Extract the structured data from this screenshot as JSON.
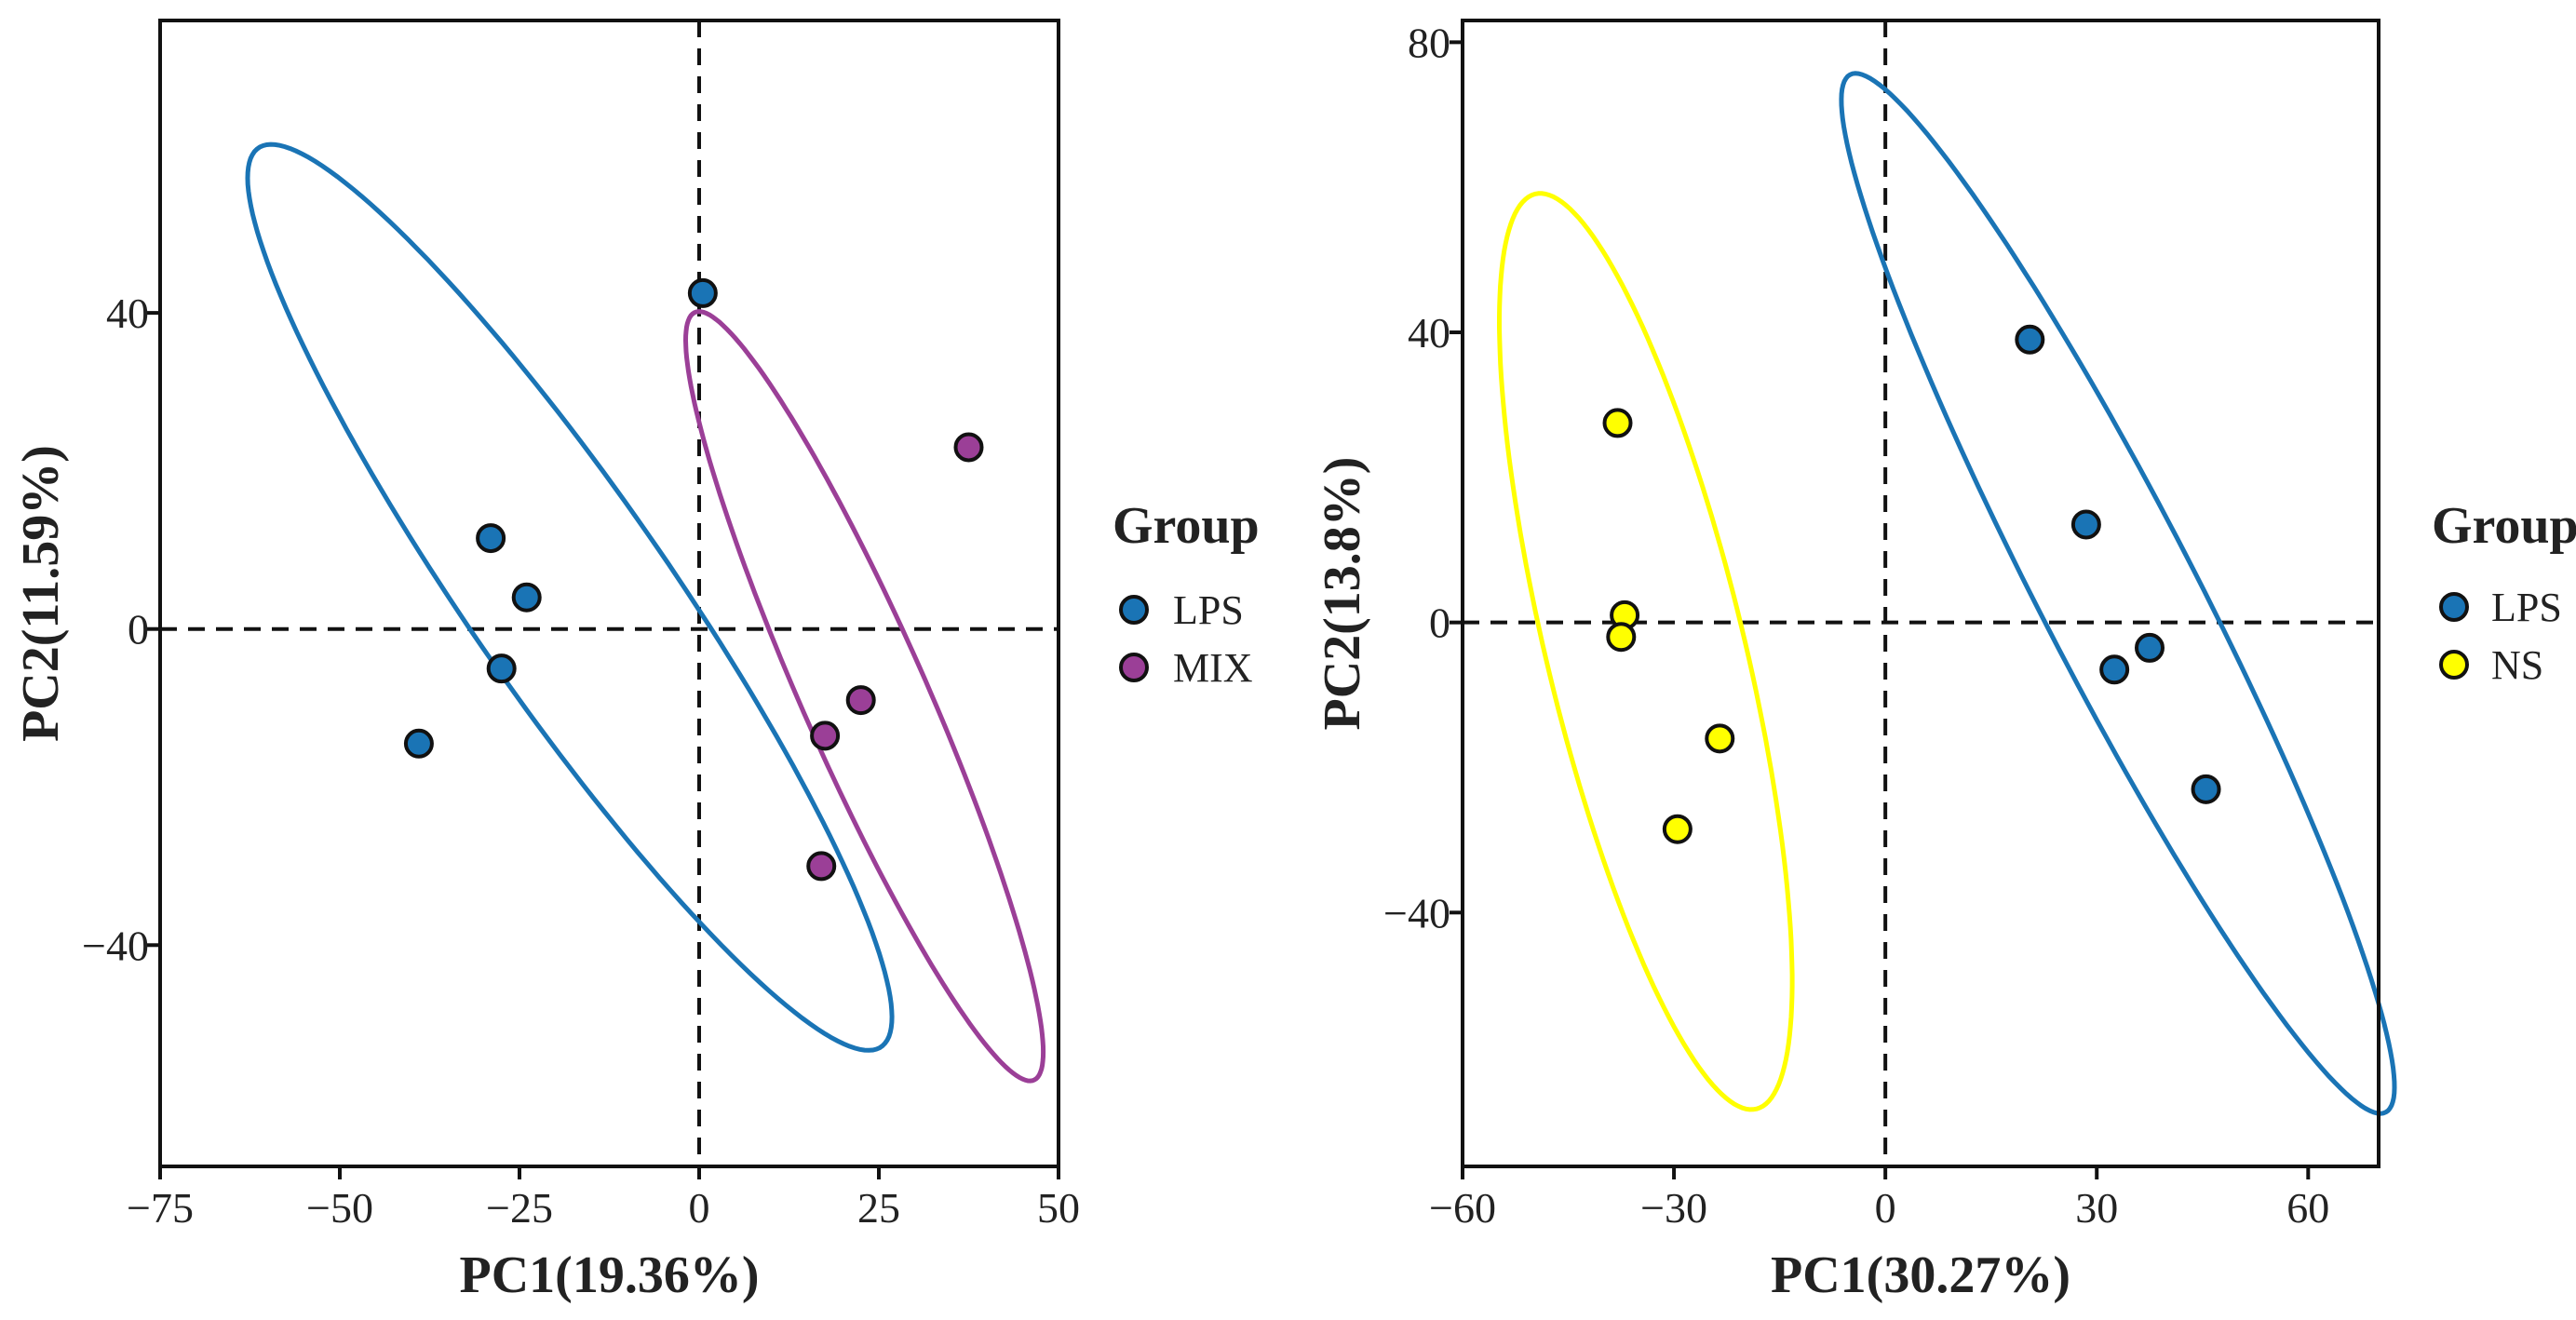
{
  "chart_data": [
    {
      "type": "scatter",
      "xlabel": "PC1(19.36%)",
      "ylabel": "PC2(11.59%)",
      "xlim": [
        -75,
        50
      ],
      "ylim": [
        -68,
        77
      ],
      "xticks": [
        -75,
        -50,
        -25,
        0,
        25,
        50
      ],
      "yticks": [
        -40,
        0,
        40
      ],
      "reference_lines": {
        "x": 0,
        "y": 0,
        "style": "dashed"
      },
      "grid": false,
      "legend": {
        "title": "Group",
        "position": "right"
      },
      "series": [
        {
          "name": "LPS",
          "color": "#1a74b5",
          "points": [
            [
              0.5,
              42.5
            ],
            [
              -29,
              11.5
            ],
            [
              -24,
              4
            ],
            [
              -27.5,
              -5
            ],
            [
              -39,
              -14.5
            ]
          ],
          "ellipse": {
            "cx": -18,
            "cy": 4,
            "rx": 71.5,
            "ry": 13.5,
            "angle_deg": -52.5
          }
        },
        {
          "name": "MIX",
          "color": "#9b3f97",
          "points": [
            [
              37.5,
              23
            ],
            [
              22.5,
              -9
            ],
            [
              17.5,
              -13.5
            ],
            [
              17,
              -30
            ]
          ],
          "ellipse": {
            "cx": 23,
            "cy": -8.5,
            "rx": 54,
            "ry": 8.5,
            "angle_deg": -64
          }
        }
      ]
    },
    {
      "type": "scatter",
      "xlabel": "PC1(30.27%)",
      "ylabel": "PC2(13.8%)",
      "xlim": [
        -60,
        70
      ],
      "ylim": [
        -75,
        83
      ],
      "xticks": [
        -60,
        -30,
        0,
        30,
        60
      ],
      "yticks": [
        -40,
        0,
        40,
        80
      ],
      "reference_lines": {
        "x": 0,
        "y": 0,
        "style": "dashed"
      },
      "grid": false,
      "legend": {
        "title": "Group",
        "position": "right"
      },
      "series": [
        {
          "name": "LPS",
          "color": "#1a74b5",
          "points": [
            [
              20.5,
              39
            ],
            [
              28.5,
              13.5
            ],
            [
              37.5,
              -3.5
            ],
            [
              32.5,
              -6.5
            ],
            [
              45.5,
              -23
            ]
          ],
          "ellipse": {
            "cx": 33,
            "cy": 4,
            "rx": 81,
            "ry": 11,
            "angle_deg": -62
          }
        },
        {
          "name": "NS",
          "color": "#ffff00",
          "points": [
            [
              -38,
              27.5
            ],
            [
              -37,
              1
            ],
            [
              -37.5,
              -2
            ],
            [
              -23.5,
              -16
            ],
            [
              -29.5,
              -28.5
            ]
          ],
          "ellipse": {
            "cx": -34,
            "cy": -4,
            "rx": 65,
            "ry": 14,
            "angle_deg": -76
          }
        }
      ]
    }
  ]
}
